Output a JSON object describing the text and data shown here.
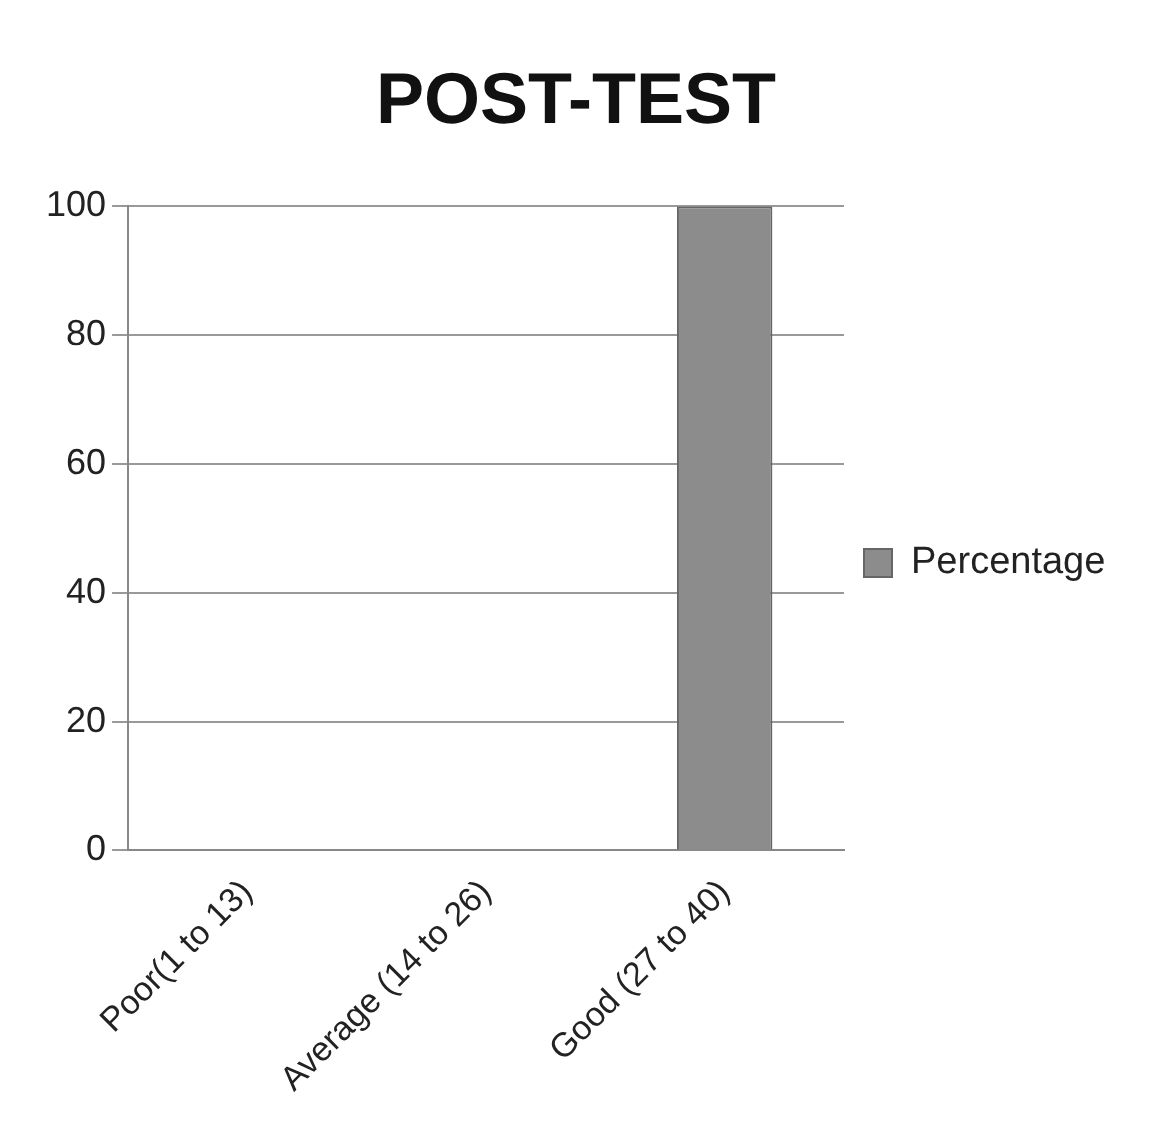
{
  "chart_data": {
    "type": "bar",
    "title": "POST-TEST",
    "categories": [
      "Poor(1 to 13)",
      "Average (14 to 26)",
      "Good (27 to 40)"
    ],
    "series": [
      {
        "name": "Percentage",
        "color": "#8c8c8c",
        "values": [
          0,
          0,
          100
        ]
      }
    ],
    "ylim": [
      0,
      100
    ],
    "yticks": [
      0,
      20,
      40,
      60,
      80,
      100
    ],
    "grid": "y",
    "legend": "right"
  }
}
